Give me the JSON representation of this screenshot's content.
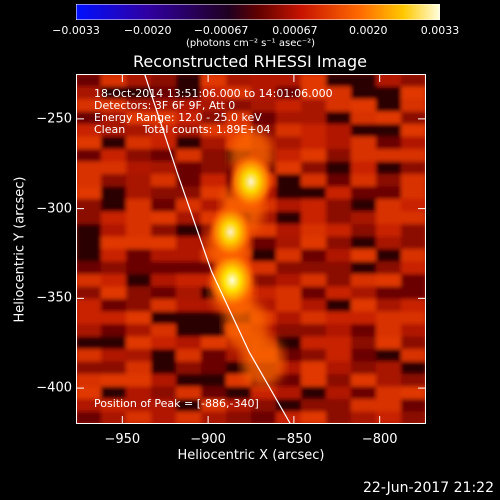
{
  "chart_data": {
    "type": "heatmap",
    "title": "Reconstructed RHESSI Image",
    "xlabel": "Heliocentric X (arcsec)",
    "ylabel": "Heliocentric Y (arcsec)",
    "xlim": [
      -977,
      -773
    ],
    "ylim": [
      -420,
      -225
    ],
    "x_ticks": [
      -950,
      -900,
      -850,
      -800
    ],
    "y_ticks": [
      -250,
      -300,
      -350,
      -400
    ],
    "x_tick_labels": [
      "−950",
      "−900",
      "−850",
      "−800"
    ],
    "y_tick_labels": [
      "−250",
      "−300",
      "−350",
      "−400"
    ],
    "colorbar": {
      "range": [
        -0.0033,
        0.0033
      ],
      "tick_values": [
        -0.0033,
        -0.002,
        -0.00067,
        0.00067,
        0.002,
        0.0033
      ],
      "tick_labels": [
        "−0.0033",
        "−0.0020",
        "−0.00067",
        "0.00067",
        "0.0020",
        "0.0033"
      ],
      "unit_label": "(photons cm⁻² s⁻¹ asec⁻²)"
    },
    "sources": [
      {
        "x": -886,
        "y": -340,
        "peak": 1.0
      },
      {
        "x": -875,
        "y": -285,
        "peak": 0.85
      },
      {
        "x": -887,
        "y": -313,
        "peak": 0.75
      }
    ],
    "limb": [
      [
        -937,
        -225
      ],
      [
        -918,
        -280
      ],
      [
        -898,
        -335
      ],
      [
        -876,
        -380
      ],
      [
        -852,
        -420
      ]
    ],
    "annotations": {
      "time_range": "18-Oct-2014 13:51:06.000 to 14:01:06.000",
      "detectors": "Detectors: 3F 6F 9F, Att 0",
      "energy_range": "Energy Range: 12.0 - 25.0 keV",
      "clean": "Clean     Total counts: 1.89E+04",
      "peak_position": "Position of Peak = [-886,-340]"
    },
    "footer_date": "22-Jun-2017 21:22"
  }
}
